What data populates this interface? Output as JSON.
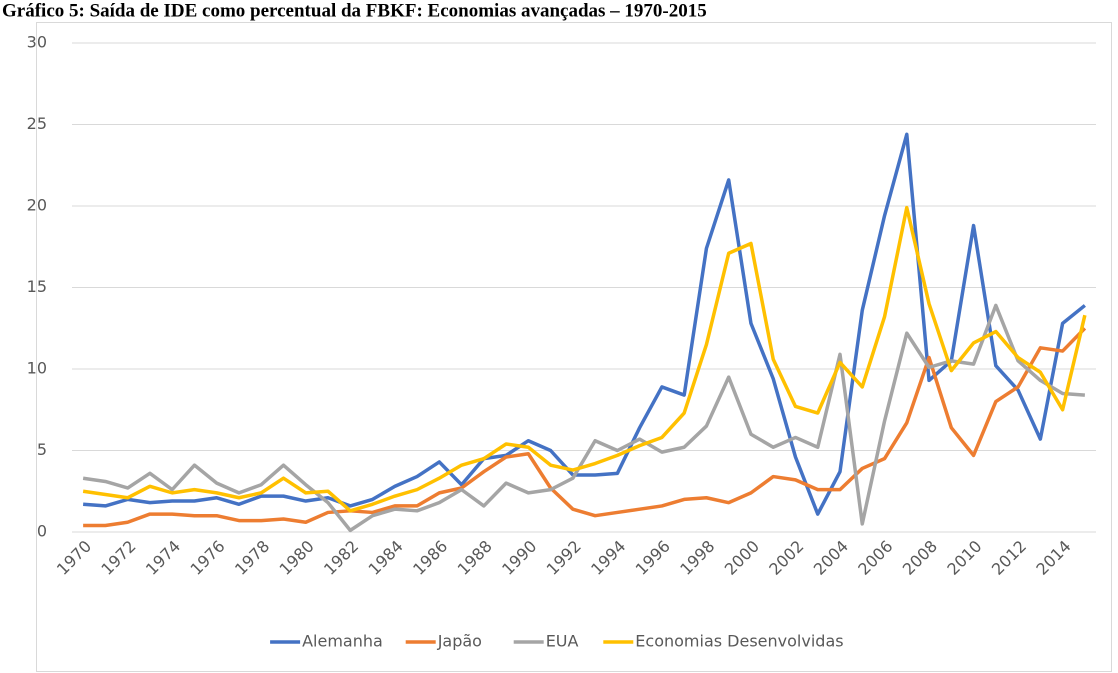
{
  "chart_data": {
    "type": "line",
    "title": "Gráfico 5: Saída de IDE como percentual da FBKF: Economias avançadas – 1970-2015",
    "x": [
      1970,
      1971,
      1972,
      1973,
      1974,
      1975,
      1976,
      1977,
      1978,
      1979,
      1980,
      1981,
      1982,
      1983,
      1984,
      1985,
      1986,
      1987,
      1988,
      1989,
      1990,
      1991,
      1992,
      1993,
      1994,
      1995,
      1996,
      1997,
      1998,
      1999,
      2000,
      2001,
      2002,
      2003,
      2004,
      2005,
      2006,
      2007,
      2008,
      2009,
      2010,
      2011,
      2012,
      2013,
      2014,
      2015
    ],
    "xlim": [
      1969.5,
      2015.5
    ],
    "xticks": [
      1970,
      1972,
      1974,
      1976,
      1978,
      1980,
      1982,
      1984,
      1986,
      1988,
      1990,
      1992,
      1994,
      1996,
      1998,
      2000,
      2002,
      2004,
      2006,
      2008,
      2010,
      2012,
      2014
    ],
    "ylim": [
      0,
      30
    ],
    "yticks": [
      0,
      5,
      10,
      15,
      20,
      25,
      30
    ],
    "grid": true,
    "legend": "bottom",
    "series": [
      {
        "name": "Alemanha",
        "color": "#4472c4",
        "values": [
          1.7,
          1.6,
          2.0,
          1.8,
          1.9,
          1.9,
          2.1,
          1.7,
          2.2,
          2.2,
          1.9,
          2.1,
          1.6,
          2.0,
          2.8,
          3.4,
          4.3,
          2.9,
          4.5,
          4.7,
          5.6,
          5.0,
          3.5,
          3.5,
          3.6,
          6.4,
          8.9,
          8.4,
          17.4,
          21.6,
          12.8,
          9.4,
          4.6,
          1.1,
          3.7,
          13.6,
          19.4,
          24.4,
          9.3,
          10.5,
          18.8,
          10.2,
          8.7,
          5.7,
          12.8,
          13.9
        ]
      },
      {
        "name": "Japão",
        "color": "#ed7d31",
        "values": [
          0.4,
          0.4,
          0.6,
          1.1,
          1.1,
          1.0,
          1.0,
          0.7,
          0.7,
          0.8,
          0.6,
          1.2,
          1.3,
          1.2,
          1.6,
          1.6,
          2.4,
          2.7,
          3.7,
          4.6,
          4.8,
          2.7,
          1.4,
          1.0,
          1.2,
          1.4,
          1.6,
          2.0,
          2.1,
          1.8,
          2.4,
          3.4,
          3.2,
          2.6,
          2.6,
          3.9,
          4.5,
          6.7,
          10.7,
          6.4,
          4.7,
          8.0,
          8.9,
          11.3,
          11.1,
          12.5
        ]
      },
      {
        "name": "EUA",
        "color": "#a5a5a5",
        "values": [
          3.3,
          3.1,
          2.7,
          3.6,
          2.6,
          4.1,
          3.0,
          2.4,
          2.9,
          4.1,
          2.9,
          1.8,
          0.1,
          1.0,
          1.4,
          1.3,
          1.8,
          2.6,
          1.6,
          3.0,
          2.4,
          2.6,
          3.3,
          5.6,
          5.0,
          5.7,
          4.9,
          5.2,
          6.5,
          9.5,
          6.0,
          5.2,
          5.8,
          5.2,
          10.9,
          0.5,
          6.8,
          12.2,
          10.1,
          10.5,
          10.3,
          13.9,
          10.5,
          9.3,
          8.5,
          8.4
        ]
      },
      {
        "name": "Economias Desenvolvidas",
        "color": "#ffc000",
        "values": [
          2.5,
          2.3,
          2.1,
          2.8,
          2.4,
          2.6,
          2.4,
          2.1,
          2.4,
          3.3,
          2.4,
          2.5,
          1.3,
          1.7,
          2.2,
          2.6,
          3.3,
          4.1,
          4.5,
          5.4,
          5.2,
          4.1,
          3.8,
          4.2,
          4.7,
          5.3,
          5.8,
          7.3,
          11.5,
          17.1,
          17.7,
          10.6,
          7.7,
          7.3,
          10.4,
          8.9,
          13.2,
          19.9,
          14.0,
          9.9,
          11.6,
          12.3,
          10.7,
          9.8,
          7.5,
          13.3
        ]
      }
    ]
  }
}
